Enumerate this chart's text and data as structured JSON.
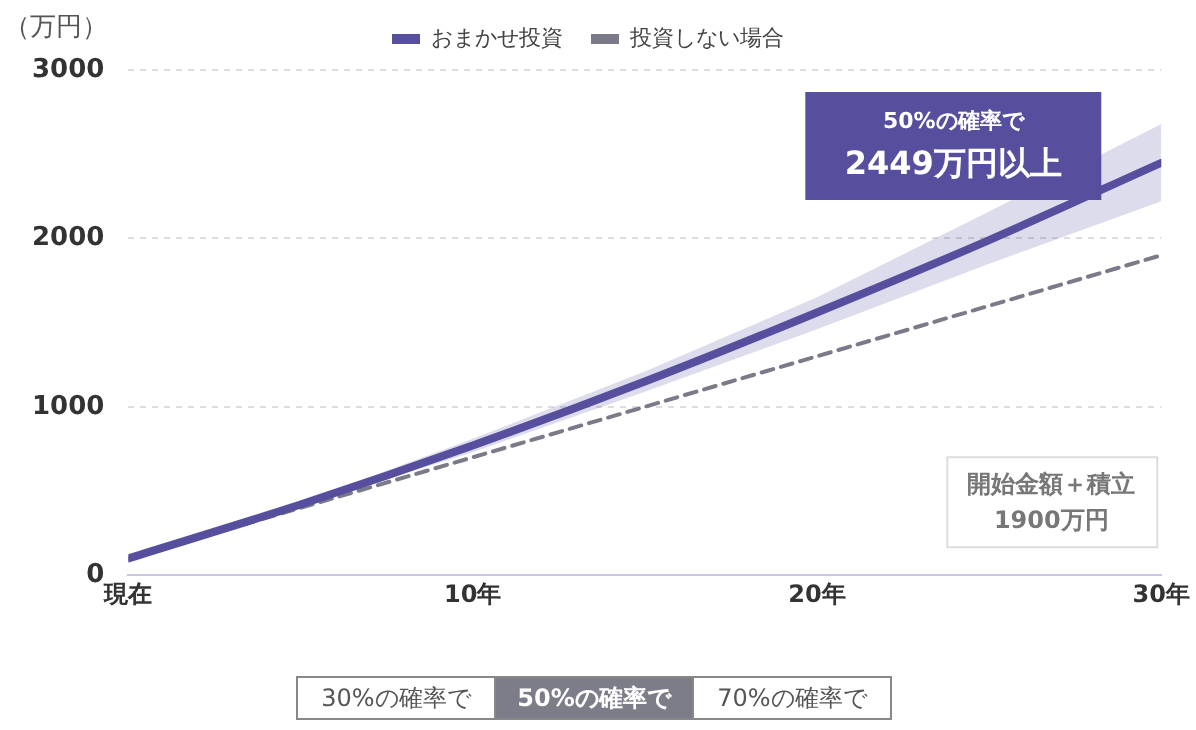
{
  "chart_data": {
    "type": "line",
    "ylabel": "（万円）",
    "x": [
      0,
      5,
      10,
      15,
      20,
      25,
      30
    ],
    "xlim": [
      0,
      30
    ],
    "xticks": [
      {
        "value": 0,
        "label": "現在"
      },
      {
        "value": 10,
        "label": "10年"
      },
      {
        "value": 20,
        "label": "20年"
      },
      {
        "value": 30,
        "label": "30年"
      }
    ],
    "ylim": [
      0,
      3000
    ],
    "yticks": [
      0,
      1000,
      2000,
      3000
    ],
    "series": [
      {
        "name": "おまかせ投資",
        "color": "#554f9e",
        "values": [
          100,
          420,
          770,
          1150,
          1560,
          1990,
          2449
        ],
        "lower": [
          100,
          410,
          730,
          1090,
          1460,
          1850,
          2220
        ],
        "upper": [
          100,
          430,
          810,
          1210,
          1650,
          2160,
          2680
        ]
      },
      {
        "name": "投資しない場合",
        "color": "#7a7a88",
        "line_style": "dashed",
        "values": [
          100,
          400,
          700,
          1000,
          1300,
          1600,
          1900
        ]
      }
    ],
    "grid": "y",
    "legend": "top",
    "marker": "none",
    "annotations": [
      "50%の確率で",
      "2449万円以上",
      "開始金額＋積立",
      "1900万円",
      "30%の確率で",
      "50%の確率で",
      "70%の確率で"
    ]
  }
}
